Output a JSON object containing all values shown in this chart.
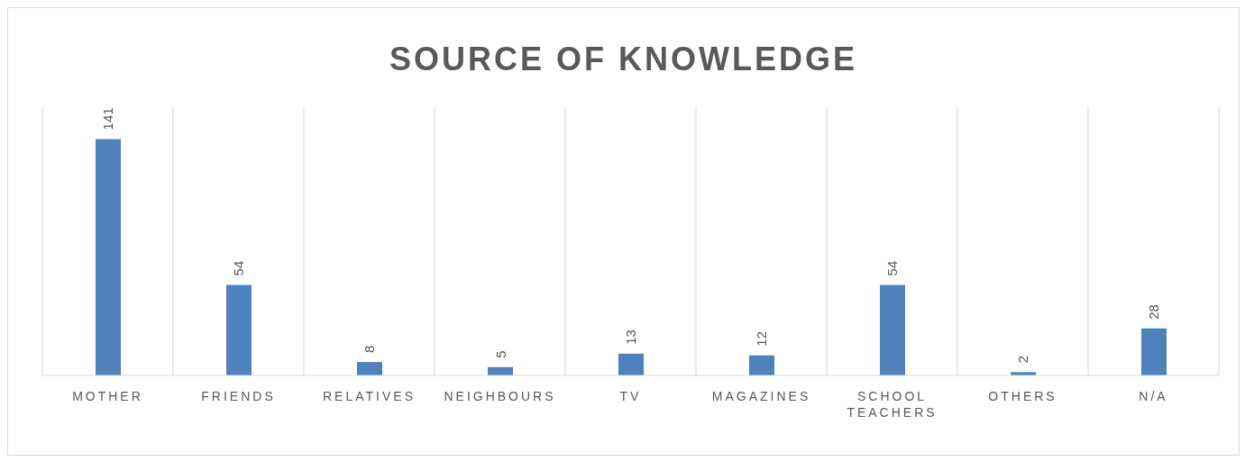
{
  "chart_data": {
    "type": "bar",
    "title": "SOURCE OF KNOWLEDGE",
    "categories": [
      "MOTHER",
      "FRIENDS",
      "RELATIVES",
      "NEIGHBOURS",
      "TV",
      "MAGAZINES",
      "SCHOOL TEACHERS",
      "OTHERS",
      "N/A"
    ],
    "values": [
      141,
      54,
      8,
      5,
      13,
      12,
      54,
      2,
      28
    ],
    "color": "#4f81bd",
    "data_labels": true,
    "grid": "x"
  }
}
